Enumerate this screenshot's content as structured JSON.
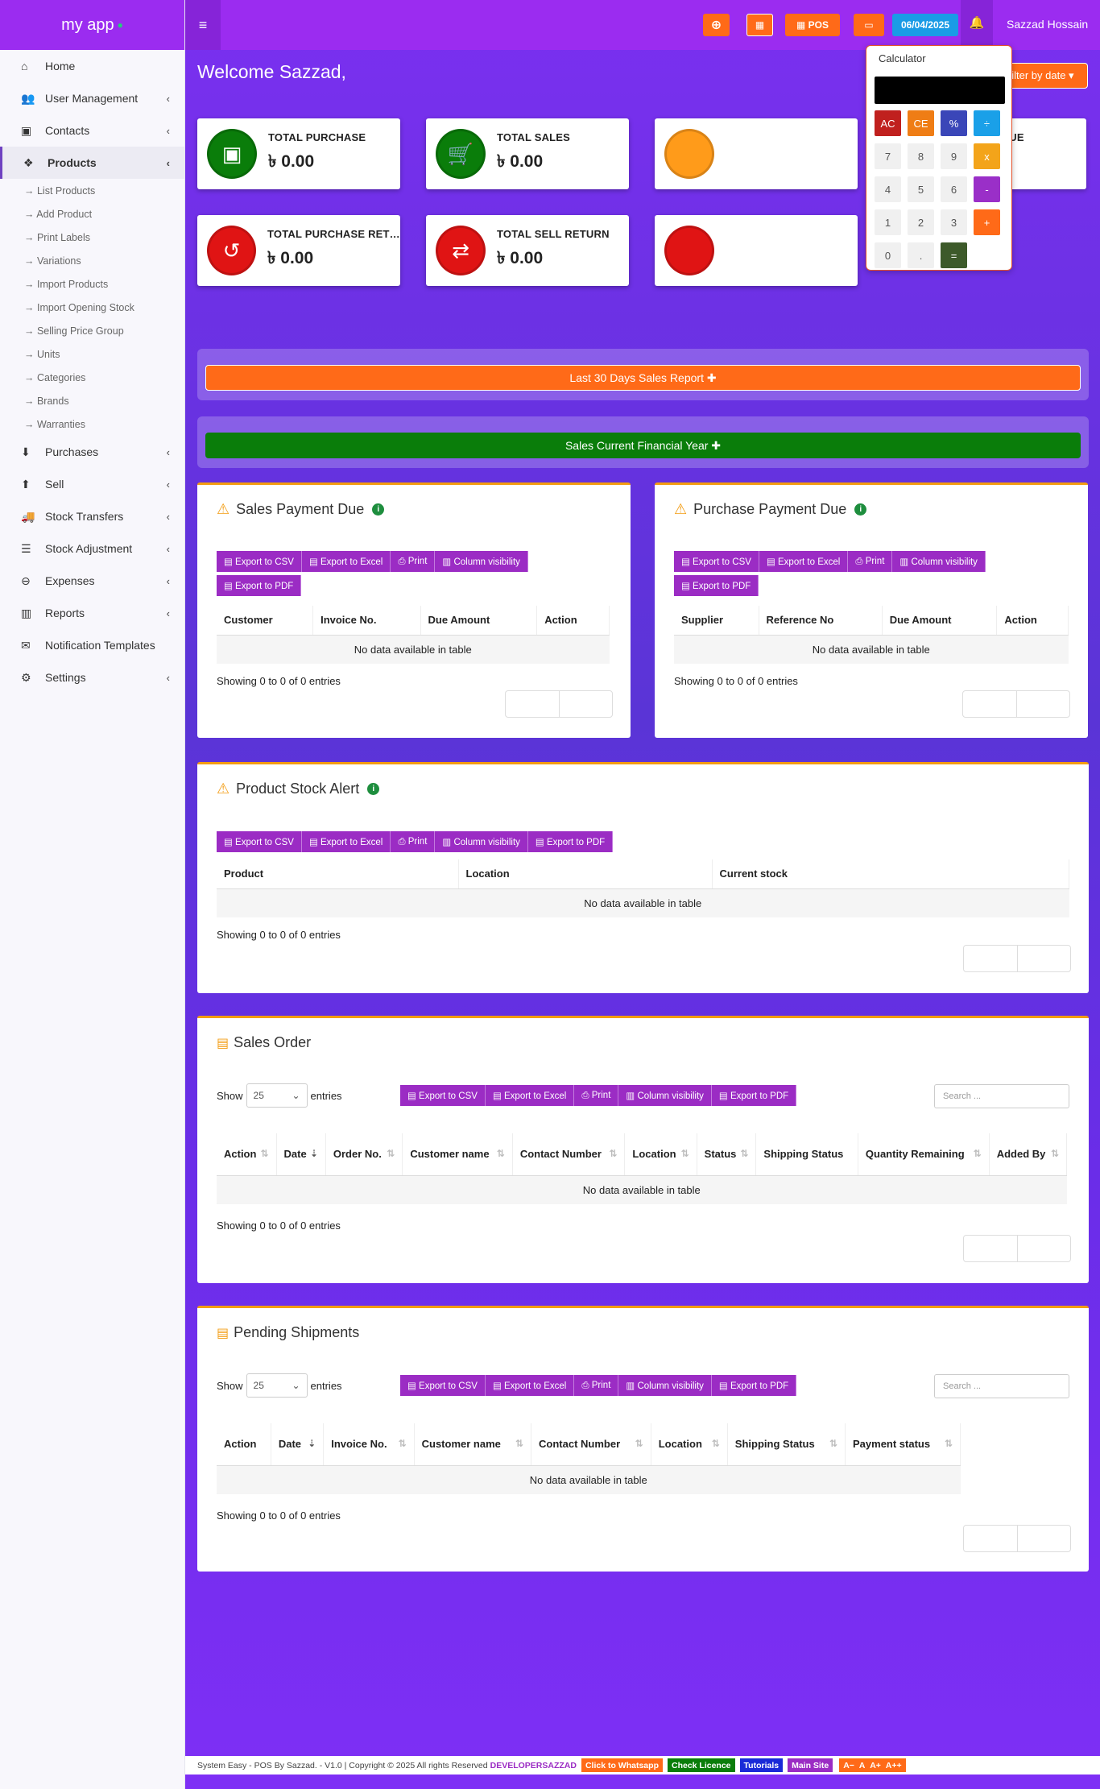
{
  "sidebar": {
    "brand": "my app",
    "brand_dot": "●",
    "items": [
      {
        "label": "Home",
        "icon": "⌂",
        "chev": ""
      },
      {
        "label": "User Management",
        "icon": "👥",
        "chev": "‹"
      },
      {
        "label": "Contacts",
        "icon": "▣",
        "chev": "‹"
      },
      {
        "label": "Products",
        "icon": "❖",
        "chev": "‹"
      }
    ],
    "products_sub": [
      "→ List Products",
      "→ Add Product",
      "→ Print Labels",
      "→ Variations",
      "→ Import Products",
      "→ Import Opening Stock",
      "→ Selling Price Group",
      "→ Units",
      "→ Categories",
      "→ Brands",
      "→ Warranties"
    ],
    "items_after": [
      {
        "label": "Purchases",
        "icon": "⬇",
        "chev": "‹"
      },
      {
        "label": "Sell",
        "icon": "⬆",
        "chev": "‹"
      },
      {
        "label": "Stock Transfers",
        "icon": "🚚",
        "chev": "‹"
      },
      {
        "label": "Stock Adjustment",
        "icon": "☰",
        "chev": "‹"
      },
      {
        "label": "Expenses",
        "icon": "⊖",
        "chev": "‹"
      },
      {
        "label": "Reports",
        "icon": "▥",
        "chev": "‹"
      },
      {
        "label": "Notification Templates",
        "icon": "✉",
        "chev": ""
      },
      {
        "label": "Settings",
        "icon": "⚙",
        "chev": "‹"
      }
    ]
  },
  "topbar": {
    "menu_icon": "≡",
    "add_icon": "⊕",
    "calc_icon": "▦",
    "pos_label": "▦ POS",
    "money_icon": "▭",
    "date": "06/04/2025",
    "bell_icon": "🔔",
    "user": "Sazzad Hossain"
  },
  "welcome": "Welcome Sazzad,",
  "filter_btn": "▦ Filter by date ▾",
  "cards": [
    {
      "label": "TOTAL PURCHASE",
      "value": "৳ 0.00",
      "icon": "▣"
    },
    {
      "label": "TOTAL SALES",
      "value": "৳ 0.00",
      "icon": "🛒"
    },
    {
      "label": "INVOICE DUE",
      "value": "৳ 0.00",
      "icon": "▤"
    },
    {
      "label": "TOTAL PURCHASE RETURN",
      "value": "৳ 0.00",
      "icon": "↺"
    },
    {
      "label": "TOTAL SELL RETURN",
      "value": "৳ 0.00",
      "icon": "⇄"
    }
  ],
  "bands": {
    "last30": "Last 30 Days Sales Report ✚",
    "financial": "Sales Current Financial Year ✚"
  },
  "export_buttons": [
    "▤ Export to CSV",
    "▤ Export to Excel",
    "⎙ Print",
    "▥ Column visibility",
    "▤ Export to PDF"
  ],
  "sales_payment_due": {
    "title": "Sales Payment Due",
    "cols": [
      "Customer",
      "Invoice No.",
      "Due Amount",
      "Action"
    ],
    "empty": "No data available in table",
    "showing": "Showing 0 to 0 of 0 entries"
  },
  "purchase_payment_due": {
    "title": "Purchase Payment Due",
    "cols": [
      "Supplier",
      "Reference No",
      "Due Amount",
      "Action"
    ],
    "empty": "No data available in table",
    "showing": "Showing 0 to 0 of 0 entries"
  },
  "stock_alert": {
    "title": "Product Stock Alert",
    "cols": [
      "Product",
      "Location",
      "Current stock"
    ],
    "empty": "No data available in table",
    "showing": "Showing 0 to 0 of 0 entries"
  },
  "sales_order": {
    "title": "Sales Order",
    "show": "Show",
    "entries": "entries",
    "page_size": "25",
    "search_placeholder": "Search ...",
    "cols": [
      "Action",
      "Date",
      "Order No.",
      "Customer name",
      "Contact Number",
      "Location",
      "Status",
      "Shipping Status",
      "Quantity Remaining",
      "Added By"
    ],
    "empty": "No data available in table",
    "showing": "Showing 0 to 0 of 0 entries"
  },
  "pending_shipments": {
    "title": "Pending Shipments",
    "show": "Show",
    "entries": "entries",
    "page_size": "25",
    "search_placeholder": "Search ...",
    "cols": [
      "Action",
      "Date",
      "Invoice No.",
      "Customer name",
      "Contact Number",
      "Location",
      "Shipping Status",
      "Payment status"
    ],
    "empty": "No data available in table",
    "showing": "Showing 0 to 0 of 0 entries"
  },
  "calculator": {
    "title": "Calculator",
    "keys": [
      [
        "AC",
        "CE",
        "%",
        "÷"
      ],
      [
        "7",
        "8",
        "9",
        "x"
      ],
      [
        "4",
        "5",
        "6",
        "-"
      ],
      [
        "1",
        "2",
        "3",
        "+"
      ],
      [
        "0",
        ".",
        "="
      ]
    ]
  },
  "footer": {
    "text": "System Easy - POS By Sazzad. - V1.0 | Copyright © 2025 All rights Reserved",
    "dev": "DEVELOPERSAZZAD",
    "whatsapp": "Click to Whatsapp",
    "licence": "Check Licence",
    "tutorials": "Tutorials",
    "main_site": "Main Site",
    "font_sizes": [
      "A−",
      "A",
      "A+",
      "A++"
    ]
  },
  "colors": {
    "accent": "#9b2cf0",
    "orange": "#ff6a18",
    "green": "#0a7d0a",
    "export": "#9b2cc4"
  }
}
